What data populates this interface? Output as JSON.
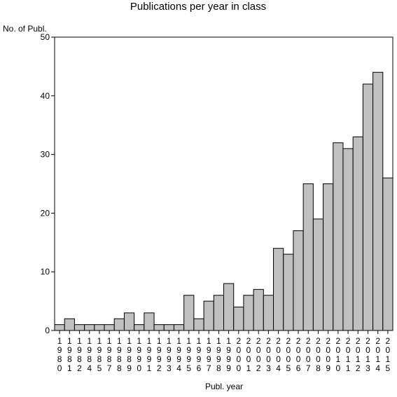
{
  "chart_data": {
    "type": "bar",
    "title": "Publications per year in class",
    "xlabel": "Publ. year",
    "ylabel": "No. of Publ.",
    "ylim": [
      0,
      50
    ],
    "yticks": [
      0,
      10,
      20,
      30,
      40,
      50
    ],
    "categories": [
      "1980",
      "1981",
      "1982",
      "1984",
      "1985",
      "1987",
      "1988",
      "1989",
      "1990",
      "1991",
      "1992",
      "1993",
      "1994",
      "1995",
      "1996",
      "1997",
      "1998",
      "1999",
      "2000",
      "2001",
      "2002",
      "2003",
      "2004",
      "2005",
      "2006",
      "2007",
      "2008",
      "2009",
      "2010",
      "2011",
      "2012",
      "2013",
      "2014",
      "2015"
    ],
    "values": [
      1,
      2,
      1,
      1,
      1,
      1,
      2,
      3,
      1,
      3,
      1,
      1,
      1,
      6,
      2,
      5,
      6,
      8,
      4,
      6,
      7,
      6,
      14,
      13,
      17,
      25,
      19,
      25,
      32,
      31,
      33,
      42,
      44,
      26
    ],
    "colors": {
      "bar": "#c0c0c0",
      "outline": "#000000"
    },
    "grid": false,
    "legend": "none"
  }
}
